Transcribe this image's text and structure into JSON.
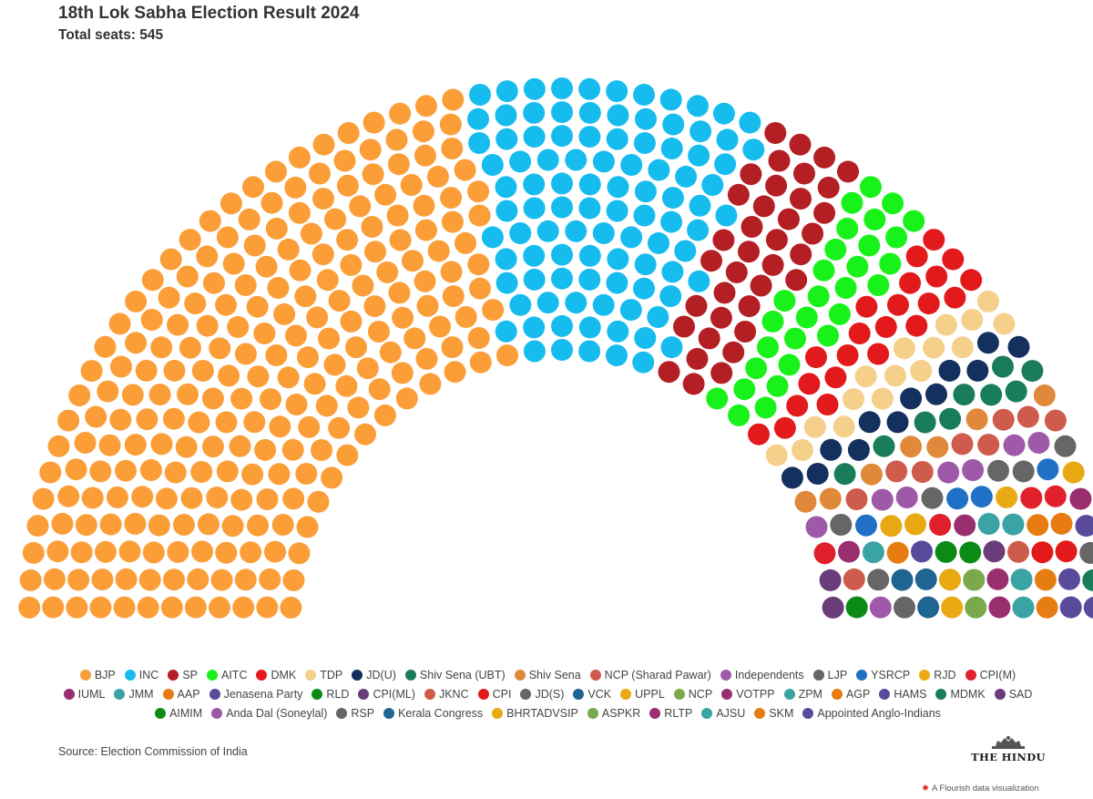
{
  "header": {
    "title": "18th Lok Sabha Election Result 2024",
    "subtitle": "Total seats: 545"
  },
  "chart_data": {
    "type": "parliament",
    "total_seats": 545,
    "parties": [
      {
        "name": "BJP",
        "seats": 240,
        "color": "#fb9e38"
      },
      {
        "name": "INC",
        "seats": 99,
        "color": "#17bcef"
      },
      {
        "name": "SP",
        "seats": 37,
        "color": "#b41f24"
      },
      {
        "name": "AITC",
        "seats": 29,
        "color": "#19f21a"
      },
      {
        "name": "DMK",
        "seats": 22,
        "color": "#e31a1c"
      },
      {
        "name": "TDP",
        "seats": 16,
        "color": "#f5d08b"
      },
      {
        "name": "JD(U)",
        "seats": 12,
        "color": "#14305e"
      },
      {
        "name": "Shiv Sena (UBT)",
        "seats": 9,
        "color": "#1a7d5a"
      },
      {
        "name": "Shiv Sena",
        "seats": 7,
        "color": "#e0893a"
      },
      {
        "name": "NCP (Sharad Pawar)",
        "seats": 8,
        "color": "#cf5b4c"
      },
      {
        "name": "Independents",
        "seats": 7,
        "color": "#9e5aa8"
      },
      {
        "name": "LJP",
        "seats": 5,
        "color": "#666666"
      },
      {
        "name": "YSRCP",
        "seats": 4,
        "color": "#2070c6"
      },
      {
        "name": "RJD",
        "seats": 4,
        "color": "#e8a912"
      },
      {
        "name": "CPI(M)",
        "seats": 4,
        "color": "#e0202a"
      },
      {
        "name": "IUML",
        "seats": 3,
        "color": "#9a2f6f"
      },
      {
        "name": "JMM",
        "seats": 3,
        "color": "#3aa3a3"
      },
      {
        "name": "AAP",
        "seats": 3,
        "color": "#e67c12"
      },
      {
        "name": "Jenasena Party",
        "seats": 2,
        "color": "#5a4a9c"
      },
      {
        "name": "RLD",
        "seats": 2,
        "color": "#0c8a16"
      },
      {
        "name": "CPI(ML)",
        "seats": 2,
        "color": "#6a3c7a"
      },
      {
        "name": "JKNC",
        "seats": 2,
        "color": "#cf5b4c"
      },
      {
        "name": "CPI",
        "seats": 2,
        "color": "#e31a1c"
      },
      {
        "name": "JD(S)",
        "seats": 2,
        "color": "#666666"
      },
      {
        "name": "VCK",
        "seats": 2,
        "color": "#1f6591"
      },
      {
        "name": "UPPL",
        "seats": 1,
        "color": "#e8a912"
      },
      {
        "name": "NCP",
        "seats": 1,
        "color": "#7aa84a"
      },
      {
        "name": "VOTPP",
        "seats": 1,
        "color": "#9a2f6f"
      },
      {
        "name": "ZPM",
        "seats": 1,
        "color": "#3aa3a3"
      },
      {
        "name": "AGP",
        "seats": 1,
        "color": "#e67c12"
      },
      {
        "name": "HAMS",
        "seats": 1,
        "color": "#5a4a9c"
      },
      {
        "name": "MDMK",
        "seats": 1,
        "color": "#1a7d5a"
      },
      {
        "name": "SAD",
        "seats": 1,
        "color": "#6a3c7a"
      },
      {
        "name": "AIMIM",
        "seats": 1,
        "color": "#0c8a16"
      },
      {
        "name": "Anda Dal (Soneylal)",
        "seats": 1,
        "color": "#9e5aa8"
      },
      {
        "name": "RSP",
        "seats": 1,
        "color": "#666666"
      },
      {
        "name": "Kerala Congress",
        "seats": 1,
        "color": "#1f6591"
      },
      {
        "name": "BHRTADVSIP",
        "seats": 1,
        "color": "#e8a912"
      },
      {
        "name": "ASPKR",
        "seats": 1,
        "color": "#7aa84a"
      },
      {
        "name": "RLTP",
        "seats": 1,
        "color": "#9a2f6f"
      },
      {
        "name": "AJSU",
        "seats": 1,
        "color": "#3aa3a3"
      },
      {
        "name": "SKM",
        "seats": 1,
        "color": "#e67c12"
      },
      {
        "name": "Appointed Anglo-Indians",
        "seats": 2,
        "color": "#5a4a9c"
      }
    ]
  },
  "footer": {
    "source": "Source: Election Commission of India",
    "brand": "THE HINDU",
    "credit": "A Flourish data visualization"
  }
}
